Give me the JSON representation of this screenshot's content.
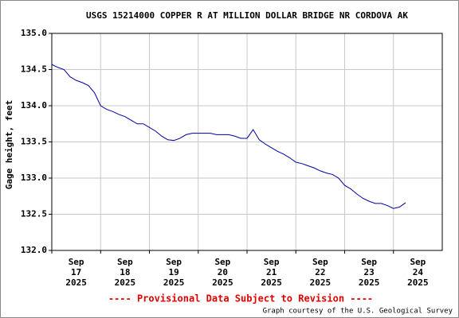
{
  "chart_data": {
    "type": "line",
    "title": "USGS 15214000 COPPER R AT MILLION DOLLAR BRIDGE NR CORDOVA AK",
    "y_label": "Gage height, feet",
    "note": "---- Provisional Data Subject to Revision ----",
    "credit": "Graph courtesy of the U.S. Geological Survey",
    "grid": true,
    "xlim": [
      "2025-09-17T00:00",
      "2025-09-25T00:00"
    ],
    "xticks": [
      {
        "value": "2025-09-17T00:00",
        "label": "Sep\n17\n2025"
      },
      {
        "value": "2025-09-18T00:00",
        "label": "Sep\n18\n2025"
      },
      {
        "value": "2025-09-19T00:00",
        "label": "Sep\n19\n2025"
      },
      {
        "value": "2025-09-20T00:00",
        "label": "Sep\n20\n2025"
      },
      {
        "value": "2025-09-21T00:00",
        "label": "Sep\n21\n2025"
      },
      {
        "value": "2025-09-22T00:00",
        "label": "Sep\n22\n2025"
      },
      {
        "value": "2025-09-23T00:00",
        "label": "Sep\n23\n2025"
      },
      {
        "value": "2025-09-24T00:00",
        "label": "Sep\n24\n2025"
      }
    ],
    "ylim": [
      132.0,
      135.0
    ],
    "yticks": [
      {
        "value": 132.0,
        "label": "132.0"
      },
      132.5,
      {
        "value": 133.0,
        "label": "133.0"
      },
      133.5,
      {
        "value": 134.0,
        "label": "134.0"
      },
      134.5,
      {
        "value": 135.0,
        "label": "135.0"
      }
    ],
    "x": [
      "2025-09-17T00:00",
      "2025-09-17T03:00",
      "2025-09-17T06:00",
      "2025-09-17T09:00",
      "2025-09-17T12:00",
      "2025-09-17T15:00",
      "2025-09-17T18:00",
      "2025-09-17T21:00",
      "2025-09-18T00:00",
      "2025-09-18T03:00",
      "2025-09-18T06:00",
      "2025-09-18T09:00",
      "2025-09-18T12:00",
      "2025-09-18T15:00",
      "2025-09-18T18:00",
      "2025-09-18T21:00",
      "2025-09-19T00:00",
      "2025-09-19T03:00",
      "2025-09-19T06:00",
      "2025-09-19T09:00",
      "2025-09-19T12:00",
      "2025-09-19T15:00",
      "2025-09-19T18:00",
      "2025-09-19T21:00",
      "2025-09-20T00:00",
      "2025-09-20T03:00",
      "2025-09-20T06:00",
      "2025-09-20T09:00",
      "2025-09-20T12:00",
      "2025-09-20T15:00",
      "2025-09-20T18:00",
      "2025-09-20T21:00",
      "2025-09-21T00:00",
      "2025-09-21T03:00",
      "2025-09-21T06:00",
      "2025-09-21T09:00",
      "2025-09-21T12:00",
      "2025-09-21T15:00",
      "2025-09-21T18:00",
      "2025-09-21T21:00",
      "2025-09-22T00:00",
      "2025-09-22T03:00",
      "2025-09-22T06:00",
      "2025-09-22T09:00",
      "2025-09-22T12:00",
      "2025-09-22T15:00",
      "2025-09-22T18:00",
      "2025-09-22T21:00",
      "2025-09-23T00:00",
      "2025-09-23T03:00",
      "2025-09-23T06:00",
      "2025-09-23T09:00",
      "2025-09-23T12:00",
      "2025-09-23T15:00",
      "2025-09-23T18:00",
      "2025-09-23T21:00",
      "2025-09-24T00:00",
      "2025-09-24T03:00",
      "2025-09-24T06:00"
    ],
    "series": [
      {
        "name": "Gage height",
        "color": "#0000a0",
        "values": [
          134.57,
          134.53,
          134.5,
          134.4,
          134.35,
          134.32,
          134.28,
          134.18,
          134.0,
          133.95,
          133.92,
          133.88,
          133.85,
          133.8,
          133.75,
          133.75,
          133.7,
          133.65,
          133.58,
          133.53,
          133.52,
          133.55,
          133.6,
          133.62,
          133.62,
          133.62,
          133.62,
          133.6,
          133.6,
          133.6,
          133.58,
          133.55,
          133.55,
          133.67,
          133.53,
          133.47,
          133.42,
          133.37,
          133.33,
          133.28,
          133.22,
          133.2,
          133.17,
          133.14,
          133.1,
          133.07,
          133.05,
          133.0,
          132.9,
          132.85,
          132.78,
          132.72,
          132.68,
          132.65,
          132.65,
          132.62,
          132.58,
          132.6,
          132.66
        ]
      }
    ]
  }
}
